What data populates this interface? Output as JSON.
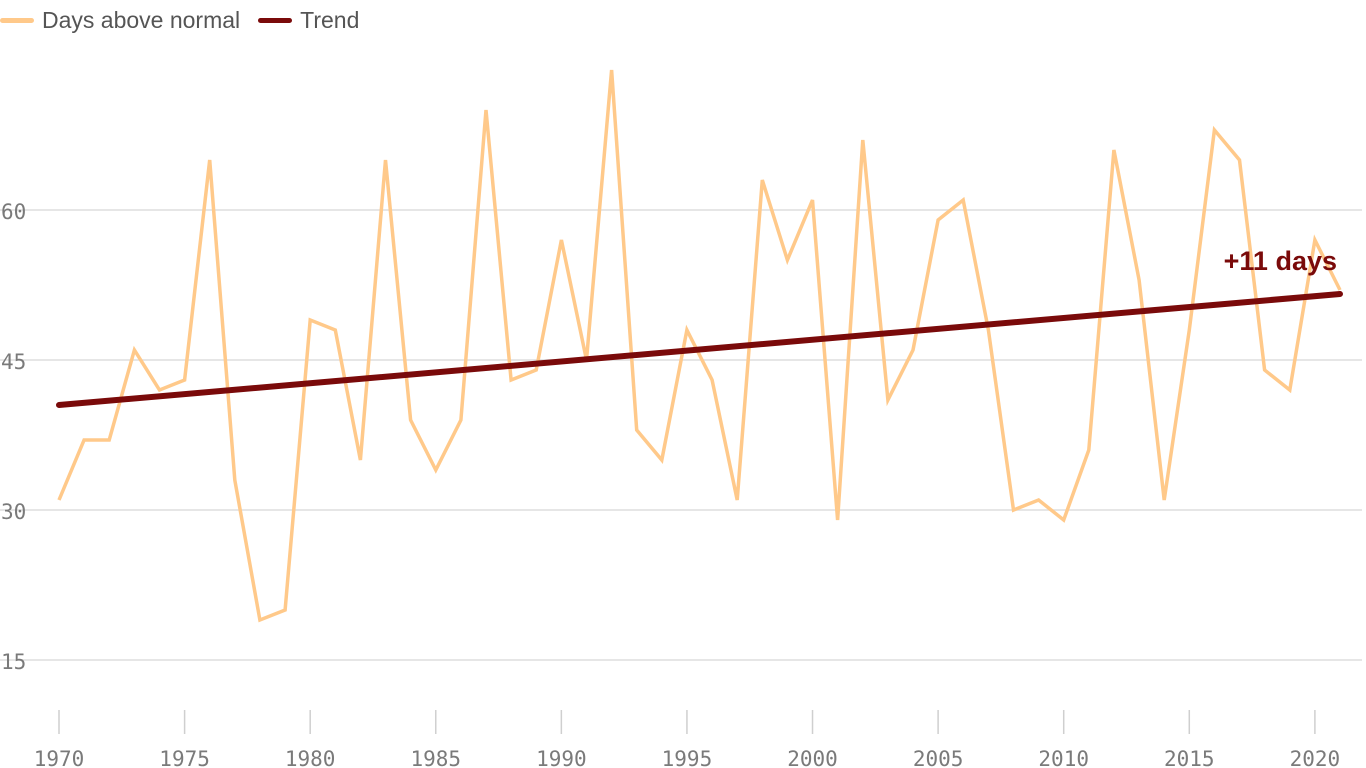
{
  "legend": {
    "items": [
      {
        "label": "Days above normal",
        "color": "#ffc98a"
      },
      {
        "label": "Trend",
        "color": "#7a0a0a"
      }
    ]
  },
  "annotation": {
    "text": "+11 days",
    "color": "#7a0a0a"
  },
  "chart_data": {
    "type": "line",
    "title": "",
    "xlabel": "",
    "ylabel": "",
    "xlim": [
      1970,
      2021
    ],
    "ylim": [
      5,
      75
    ],
    "xticks": [
      1970,
      1975,
      1980,
      1985,
      1990,
      1995,
      2000,
      2005,
      2010,
      2015,
      2020
    ],
    "yticks": [
      15,
      30,
      45,
      60
    ],
    "grid": "horizontal",
    "legend_position": "top-left",
    "x": [
      1970,
      1971,
      1972,
      1973,
      1974,
      1975,
      1976,
      1977,
      1978,
      1979,
      1980,
      1981,
      1982,
      1983,
      1984,
      1985,
      1986,
      1987,
      1988,
      1989,
      1990,
      1991,
      1992,
      1993,
      1994,
      1995,
      1996,
      1997,
      1998,
      1999,
      2000,
      2001,
      2002,
      2003,
      2004,
      2005,
      2006,
      2007,
      2008,
      2009,
      2010,
      2011,
      2012,
      2013,
      2014,
      2015,
      2016,
      2017,
      2018,
      2019,
      2020,
      2021
    ],
    "series": [
      {
        "name": "Days above normal",
        "color": "#ffc98a",
        "values": [
          31,
          37,
          37,
          46,
          42,
          43,
          65,
          33,
          19,
          20,
          49,
          48,
          35,
          65,
          39,
          34,
          39,
          70,
          43,
          44,
          57,
          45,
          74,
          38,
          35,
          48,
          43,
          31,
          63,
          55,
          61,
          29,
          67,
          41,
          46,
          59,
          61,
          48,
          30,
          31,
          29,
          36,
          66,
          53,
          31,
          48,
          68,
          65,
          44,
          42,
          57,
          52
        ]
      },
      {
        "name": "Trend",
        "color": "#7a0a0a",
        "x": [
          1970,
          2021
        ],
        "values": [
          40.5,
          51.6
        ]
      }
    ]
  }
}
